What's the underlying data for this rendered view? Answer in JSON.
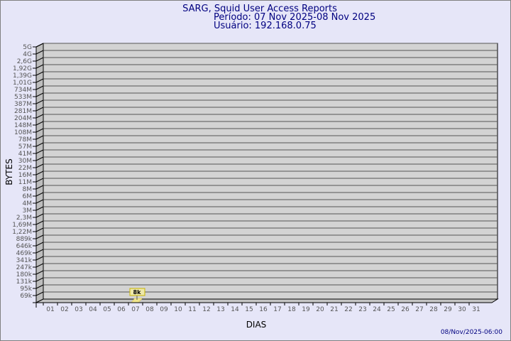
{
  "header": {
    "title": "SARG, Squid User Access Reports",
    "period": "Período: 07 Nov 2025-08 Nov 2025",
    "user": "Usuário: 192.168.0.75"
  },
  "footer": {
    "timestamp": "08/Nov/2025-06:00"
  },
  "colors": {
    "background": "#e6e6f8",
    "plot": "#d3d3d3",
    "title": "#000080",
    "bar": "#f0e68c"
  },
  "chart_data": {
    "type": "bar",
    "xlabel": "DIAS",
    "ylabel": "BYTES",
    "y_scale": "log",
    "grid": true,
    "y_ticks": [
      "5G",
      "4G",
      "2,6G",
      "1,92G",
      "1,39G",
      "1,01G",
      "734M",
      "533M",
      "387M",
      "281M",
      "204M",
      "148M",
      "108M",
      "78M",
      "57M",
      "41M",
      "30M",
      "22M",
      "16M",
      "11M",
      "8M",
      "6M",
      "4M",
      "3M",
      "2,3M",
      "1,69M",
      "1,22M",
      "889k",
      "646k",
      "469k",
      "341k",
      "247k",
      "180k",
      "131k",
      "95k",
      "69k"
    ],
    "categories": [
      "01",
      "02",
      "03",
      "04",
      "05",
      "06",
      "07",
      "08",
      "09",
      "10",
      "11",
      "12",
      "13",
      "14",
      "15",
      "16",
      "17",
      "18",
      "19",
      "20",
      "21",
      "22",
      "23",
      "24",
      "25",
      "26",
      "27",
      "28",
      "29",
      "30",
      "31"
    ],
    "values": [
      null,
      null,
      null,
      null,
      null,
      null,
      8000,
      null,
      null,
      null,
      null,
      null,
      null,
      null,
      null,
      null,
      null,
      null,
      null,
      null,
      null,
      null,
      null,
      null,
      null,
      null,
      null,
      null,
      null,
      null,
      null
    ],
    "data_labels": {
      "07": "8k"
    }
  }
}
